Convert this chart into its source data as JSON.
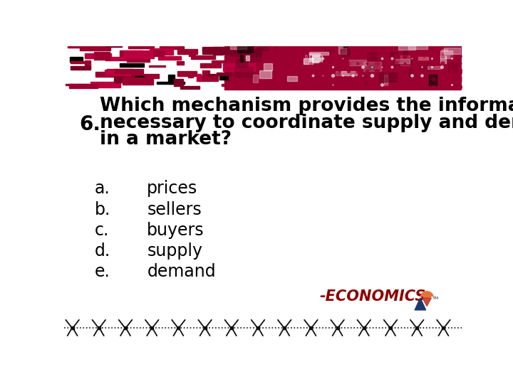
{
  "bg_color": "#ffffff",
  "question_number": "6.",
  "question_text_line1": "Which mechanism provides the information",
  "question_text_line2": "necessary to coordinate supply and demand",
  "question_text_line3": "in a market?",
  "options": [
    [
      "a.",
      "prices"
    ],
    [
      "b.",
      "sellers"
    ],
    [
      "c.",
      "buyers"
    ],
    [
      "d.",
      "supply"
    ],
    [
      "e.",
      "demand"
    ]
  ],
  "question_color": "#000000",
  "number_color": "#000000",
  "option_letter_color": "#000000",
  "option_text_color": "#000000",
  "economics_text": "-ECONOMICS-",
  "economics_color": "#8b0000",
  "top_bar_color": "#9b0030",
  "barbed_wire_color": "#111111",
  "question_fontsize": 19,
  "option_fontsize": 17,
  "number_fontsize": 20
}
